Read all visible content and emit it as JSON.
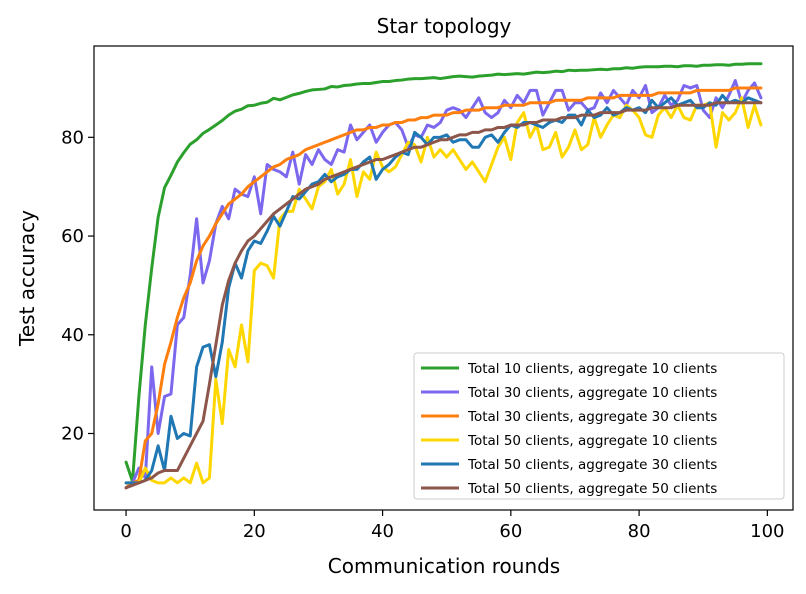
{
  "chart_data": {
    "type": "line",
    "title": "Star topology",
    "xlabel": "Communication rounds",
    "ylabel": "Test accuracy",
    "xlim": [
      -5,
      104
    ],
    "ylim": [
      4.5,
      98.5
    ],
    "xticks": [
      0,
      20,
      40,
      60,
      80,
      100
    ],
    "yticks": [
      20,
      40,
      60,
      80
    ],
    "grid": false,
    "legend_position": "lower right",
    "x": [
      0,
      1,
      2,
      3,
      4,
      5,
      6,
      7,
      8,
      9,
      10,
      11,
      12,
      13,
      14,
      15,
      16,
      17,
      18,
      19,
      20,
      21,
      22,
      23,
      24,
      25,
      26,
      27,
      28,
      29,
      30,
      31,
      32,
      33,
      34,
      35,
      36,
      37,
      38,
      39,
      40,
      41,
      42,
      43,
      44,
      45,
      46,
      47,
      48,
      49,
      50,
      51,
      52,
      53,
      54,
      55,
      56,
      57,
      58,
      59,
      60,
      61,
      62,
      63,
      64,
      65,
      66,
      67,
      68,
      69,
      70,
      71,
      72,
      73,
      74,
      75,
      76,
      77,
      78,
      79,
      80,
      81,
      82,
      83,
      84,
      85,
      86,
      87,
      88,
      89,
      90,
      91,
      92,
      93,
      94,
      95,
      96,
      97,
      98,
      99
    ],
    "series": [
      {
        "name": "Total 10 clients, aggregate 10 clients",
        "color": "#2ca02c",
        "values": [
          14.2,
          10.3,
          27.5,
          42.0,
          53.5,
          63.8,
          69.8,
          72.3,
          75.0,
          76.9,
          78.6,
          79.5,
          80.8,
          81.6,
          82.5,
          83.4,
          84.5,
          85.3,
          85.7,
          86.4,
          86.5,
          86.9,
          87.1,
          87.9,
          87.6,
          88.1,
          88.6,
          88.9,
          89.3,
          89.6,
          89.7,
          89.8,
          90.3,
          90.2,
          90.5,
          90.6,
          90.8,
          90.9,
          90.9,
          91.1,
          91.3,
          91.3,
          91.5,
          91.6,
          91.8,
          91.9,
          91.9,
          92.0,
          92.1,
          91.9,
          92.1,
          92.3,
          92.4,
          92.3,
          92.2,
          92.4,
          92.5,
          92.6,
          92.8,
          92.7,
          92.8,
          92.9,
          92.8,
          93.0,
          93.2,
          93.1,
          93.2,
          93.4,
          93.3,
          93.6,
          93.5,
          93.6,
          93.6,
          93.7,
          93.8,
          93.7,
          93.9,
          93.9,
          94.1,
          94.0,
          94.2,
          94.3,
          94.3,
          94.3,
          94.4,
          94.4,
          94.3,
          94.5,
          94.5,
          94.4,
          94.6,
          94.6,
          94.7,
          94.7,
          94.6,
          94.8,
          94.8,
          94.9,
          94.9,
          94.9
        ]
      },
      {
        "name": "Total 30 clients, aggregate 10 clients",
        "color": "#7b68ee",
        "values": [
          9.0,
          10.0,
          13.0,
          11.0,
          33.5,
          20.0,
          27.5,
          28.0,
          42.0,
          43.5,
          52.0,
          63.5,
          50.5,
          55.0,
          62.5,
          66.0,
          63.5,
          69.5,
          68.5,
          68.0,
          72.0,
          64.5,
          74.5,
          73.5,
          73.0,
          72.0,
          77.0,
          70.5,
          76.5,
          74.5,
          77.5,
          75.5,
          74.5,
          77.5,
          77.0,
          82.5,
          79.5,
          81.0,
          82.5,
          79.0,
          81.0,
          82.5,
          83.0,
          81.5,
          78.0,
          80.5,
          80.0,
          82.5,
          82.0,
          83.0,
          85.5,
          86.0,
          85.5,
          84.0,
          86.0,
          88.0,
          85.0,
          84.0,
          85.0,
          87.5,
          86.0,
          88.5,
          87.0,
          89.5,
          89.5,
          84.5,
          87.0,
          89.5,
          89.5,
          85.5,
          87.0,
          87.0,
          85.5,
          86.0,
          89.0,
          87.0,
          89.5,
          88.0,
          86.5,
          89.5,
          88.0,
          90.5,
          85.0,
          86.0,
          88.5,
          86.5,
          87.5,
          90.5,
          90.0,
          90.5,
          85.5,
          84.0,
          88.0,
          86.0,
          88.5,
          91.5,
          87.0,
          89.5,
          91.0,
          88.0
        ]
      },
      {
        "name": "Total 30 clients, aggregate 30 clients",
        "color": "#ff7f0e",
        "values": [
          9.0,
          10.0,
          10.5,
          18.5,
          20.0,
          26.0,
          34.0,
          38.5,
          43.5,
          47.5,
          50.5,
          55.0,
          58.0,
          60.0,
          62.5,
          64.5,
          66.5,
          67.5,
          68.5,
          70.0,
          71.0,
          72.0,
          73.0,
          74.0,
          74.5,
          75.5,
          76.0,
          76.5,
          77.5,
          78.0,
          78.5,
          79.0,
          79.5,
          80.0,
          80.5,
          81.0,
          81.5,
          81.5,
          82.0,
          82.0,
          82.5,
          82.5,
          83.0,
          83.0,
          83.5,
          83.5,
          84.0,
          84.0,
          84.5,
          84.5,
          84.5,
          85.0,
          85.0,
          85.5,
          85.5,
          85.5,
          86.0,
          86.0,
          86.0,
          86.5,
          86.5,
          86.5,
          86.5,
          87.0,
          87.0,
          87.0,
          87.0,
          87.5,
          87.5,
          87.5,
          87.5,
          87.5,
          88.0,
          88.0,
          88.0,
          88.0,
          88.0,
          88.5,
          88.5,
          88.5,
          88.5,
          88.5,
          88.5,
          89.0,
          89.0,
          89.0,
          89.0,
          89.0,
          89.0,
          89.5,
          89.5,
          89.5,
          89.5,
          89.5,
          89.5,
          90.0,
          90.0,
          90.0,
          90.0,
          90.0
        ]
      },
      {
        "name": "Total 50 clients, aggregate 10 clients",
        "color": "#ffd700",
        "values": [
          10.0,
          10.0,
          10.0,
          13.0,
          10.5,
          10.0,
          10.0,
          11.0,
          10.0,
          11.0,
          10.0,
          14.0,
          10.0,
          11.0,
          31.0,
          22.0,
          37.0,
          33.5,
          42.0,
          34.5,
          53.0,
          54.5,
          54.0,
          51.5,
          63.5,
          65.0,
          65.0,
          69.5,
          67.5,
          65.5,
          70.0,
          71.0,
          73.5,
          68.5,
          70.5,
          75.5,
          68.0,
          73.0,
          71.5,
          77.0,
          74.0,
          73.0,
          74.0,
          76.5,
          79.0,
          78.5,
          75.0,
          80.0,
          76.0,
          77.5,
          76.0,
          77.5,
          75.5,
          73.5,
          75.0,
          73.0,
          71.0,
          74.5,
          78.0,
          80.0,
          75.5,
          83.0,
          85.0,
          80.0,
          82.5,
          77.5,
          78.0,
          81.0,
          76.0,
          78.0,
          81.5,
          77.5,
          78.5,
          84.0,
          80.0,
          82.5,
          84.5,
          84.0,
          86.5,
          85.5,
          84.0,
          80.5,
          80.0,
          84.5,
          86.0,
          84.0,
          86.5,
          84.0,
          83.5,
          86.5,
          86.5,
          87.0,
          78.0,
          85.0,
          83.5,
          85.0,
          88.0,
          82.0,
          86.5,
          82.5
        ]
      },
      {
        "name": "Total 50 clients, aggregate 30 clients",
        "color": "#1f77b4",
        "values": [
          10.0,
          10.0,
          10.0,
          10.5,
          12.5,
          17.5,
          12.5,
          23.5,
          19.0,
          20.0,
          19.5,
          33.5,
          37.5,
          38.0,
          31.5,
          38.5,
          49.5,
          54.5,
          51.5,
          57.0,
          59.0,
          58.5,
          61.0,
          64.0,
          62.0,
          65.0,
          68.0,
          67.5,
          69.0,
          70.5,
          71.0,
          72.5,
          71.0,
          72.0,
          72.5,
          73.5,
          73.5,
          75.0,
          76.0,
          71.5,
          73.5,
          74.5,
          76.0,
          77.0,
          76.5,
          81.0,
          80.0,
          78.5,
          80.0,
          80.0,
          80.5,
          79.0,
          79.5,
          79.5,
          78.0,
          78.0,
          80.0,
          80.5,
          79.0,
          81.0,
          82.5,
          82.0,
          83.0,
          83.0,
          82.5,
          82.0,
          83.0,
          83.5,
          83.0,
          84.5,
          84.5,
          82.5,
          85.5,
          84.0,
          84.5,
          86.0,
          84.5,
          85.0,
          86.0,
          85.5,
          86.0,
          85.0,
          87.5,
          86.0,
          87.0,
          88.0,
          86.5,
          87.0,
          87.5,
          86.0,
          86.0,
          87.0,
          86.5,
          88.5,
          87.0,
          87.5,
          87.0,
          88.0,
          87.5,
          87.0
        ]
      },
      {
        "name": "Total 50 clients, aggregate 50 clients",
        "color": "#8c564b",
        "values": [
          9.0,
          9.5,
          10.0,
          10.5,
          11.0,
          12.0,
          12.5,
          12.5,
          12.5,
          15.0,
          17.5,
          20.0,
          22.5,
          30.0,
          38.0,
          46.0,
          51.0,
          54.5,
          57.0,
          59.0,
          60.0,
          61.5,
          63.0,
          64.5,
          65.5,
          66.5,
          67.5,
          68.5,
          69.5,
          70.0,
          70.5,
          71.5,
          72.0,
          72.5,
          73.0,
          73.5,
          74.0,
          74.5,
          75.0,
          75.5,
          75.5,
          76.0,
          76.5,
          77.0,
          77.5,
          78.0,
          78.0,
          78.5,
          79.0,
          79.5,
          79.5,
          80.0,
          80.5,
          80.5,
          81.0,
          81.0,
          81.5,
          81.5,
          82.0,
          82.0,
          82.5,
          82.5,
          82.5,
          83.0,
          83.0,
          83.5,
          83.5,
          83.5,
          84.0,
          84.0,
          84.0,
          84.5,
          84.5,
          84.5,
          85.0,
          85.0,
          85.0,
          85.0,
          85.5,
          85.5,
          85.5,
          85.5,
          86.0,
          86.0,
          86.0,
          86.0,
          86.5,
          86.5,
          86.5,
          86.5,
          86.5,
          86.5,
          87.0,
          87.0,
          87.0,
          87.0,
          87.0,
          87.0,
          87.0,
          87.0
        ]
      }
    ]
  }
}
